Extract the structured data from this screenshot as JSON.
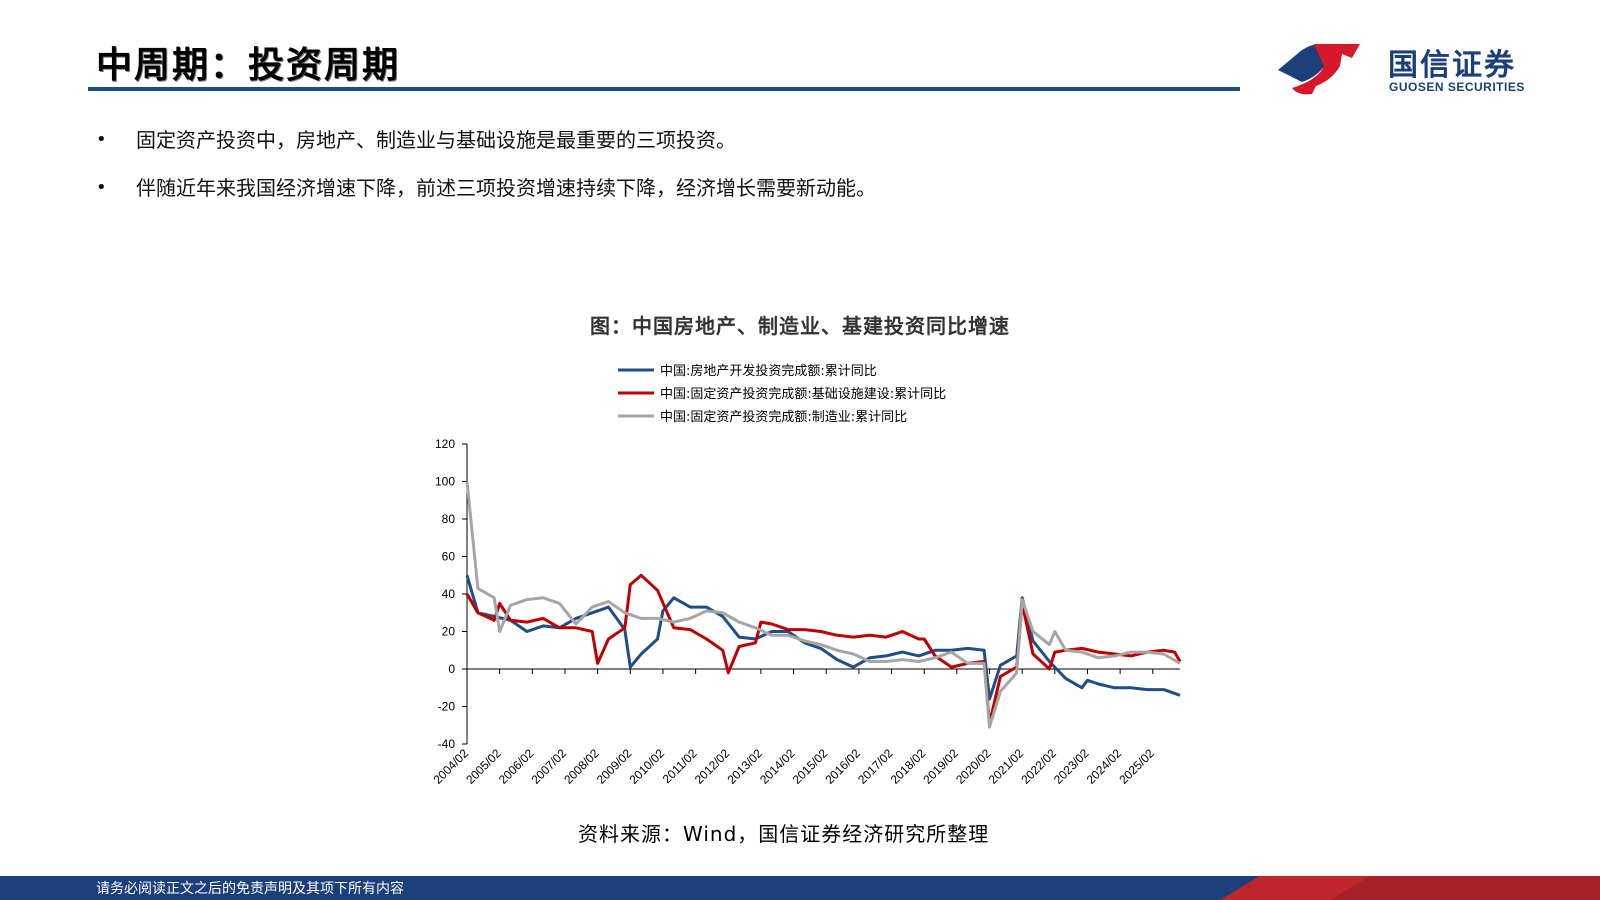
{
  "slide": {
    "title": "中周期：投资周期",
    "bullets": [
      "固定资产投资中，房地产、制造业与基础设施是最重要的三项投资。",
      "伴随近年来我国经济增速下降，前述三项投资增速持续下降，经济增长需要新动能。"
    ],
    "source": "资料来源：Wind，国信证券经济研究所整理",
    "footer": "请务必阅读正文之后的免责声明及其项下所有内容"
  },
  "logo": {
    "name": "国信证券",
    "en": "GUOSEN SECURITIES",
    "colors": {
      "red": "#d7182a",
      "blue": "#1b3f7a"
    }
  },
  "colors": {
    "accent": "#1b4b8a",
    "footer_blue": "#1b3f7a",
    "footer_red": "#c0272d"
  },
  "chart_data": {
    "type": "line",
    "title": "图：中国房地产、制造业、基建投资同比增速",
    "xlabel": "",
    "ylabel": "",
    "ylim": [
      -40,
      120
    ],
    "yticks": [
      -40,
      -20,
      0,
      20,
      40,
      60,
      80,
      100,
      120
    ],
    "grid": false,
    "legend_position": "top",
    "categories": [
      "2004/02",
      "2005/02",
      "2006/02",
      "2007/02",
      "2008/02",
      "2009/02",
      "2010/02",
      "2011/02",
      "2012/02",
      "2013/02",
      "2014/02",
      "2015/02",
      "2016/02",
      "2017/02",
      "2018/02",
      "2019/02",
      "2020/02",
      "2021/02",
      "2022/02",
      "2023/02",
      "2024/02",
      "2025/02"
    ],
    "x_range": [
      "2004/02",
      "2025/12"
    ],
    "series": [
      {
        "name": "中国:房地产开发投资完成额:累计同比",
        "color": "#1f4e86",
        "points": [
          [
            "2004/02",
            50
          ],
          [
            "2004/06",
            30
          ],
          [
            "2004/12",
            28
          ],
          [
            "2005/06",
            26
          ],
          [
            "2005/12",
            20
          ],
          [
            "2006/06",
            23
          ],
          [
            "2006/12",
            22
          ],
          [
            "2007/06",
            27
          ],
          [
            "2007/12",
            30
          ],
          [
            "2008/06",
            33
          ],
          [
            "2008/12",
            21
          ],
          [
            "2009/02",
            1
          ],
          [
            "2009/06",
            8
          ],
          [
            "2009/12",
            16
          ],
          [
            "2010/02",
            31
          ],
          [
            "2010/06",
            38
          ],
          [
            "2010/12",
            33
          ],
          [
            "2011/06",
            33
          ],
          [
            "2011/12",
            28
          ],
          [
            "2012/06",
            17
          ],
          [
            "2012/12",
            16
          ],
          [
            "2013/06",
            20
          ],
          [
            "2013/12",
            20
          ],
          [
            "2014/06",
            14
          ],
          [
            "2014/12",
            11
          ],
          [
            "2015/06",
            5
          ],
          [
            "2015/12",
            1
          ],
          [
            "2016/06",
            6
          ],
          [
            "2016/12",
            7
          ],
          [
            "2017/06",
            9
          ],
          [
            "2017/12",
            7
          ],
          [
            "2018/06",
            10
          ],
          [
            "2018/12",
            10
          ],
          [
            "2019/06",
            11
          ],
          [
            "2019/12",
            10
          ],
          [
            "2020/02",
            -16
          ],
          [
            "2020/06",
            2
          ],
          [
            "2020/12",
            7
          ],
          [
            "2021/02",
            38
          ],
          [
            "2021/06",
            15
          ],
          [
            "2021/12",
            4
          ],
          [
            "2022/06",
            -5
          ],
          [
            "2022/12",
            -10
          ],
          [
            "2023/02",
            -6
          ],
          [
            "2023/06",
            -8
          ],
          [
            "2023/12",
            -10
          ],
          [
            "2024/06",
            -10
          ],
          [
            "2024/12",
            -11
          ],
          [
            "2025/06",
            -11
          ],
          [
            "2025/12",
            -14
          ]
        ]
      },
      {
        "name": "中国:固定资产投资完成额:基础设施建设:累计同比",
        "color": "#c00000",
        "points": [
          [
            "2004/02",
            40
          ],
          [
            "2004/06",
            30
          ],
          [
            "2004/12",
            26
          ],
          [
            "2005/02",
            35
          ],
          [
            "2005/06",
            26
          ],
          [
            "2005/12",
            25
          ],
          [
            "2006/06",
            27
          ],
          [
            "2006/12",
            22
          ],
          [
            "2007/06",
            22
          ],
          [
            "2007/12",
            20
          ],
          [
            "2008/02",
            3
          ],
          [
            "2008/06",
            16
          ],
          [
            "2008/12",
            22
          ],
          [
            "2009/02",
            45
          ],
          [
            "2009/06",
            50
          ],
          [
            "2009/12",
            42
          ],
          [
            "2010/06",
            22
          ],
          [
            "2010/12",
            21
          ],
          [
            "2011/06",
            16
          ],
          [
            "2011/12",
            10
          ],
          [
            "2012/02",
            -2
          ],
          [
            "2012/06",
            12
          ],
          [
            "2012/12",
            14
          ],
          [
            "2013/02",
            25
          ],
          [
            "2013/06",
            24
          ],
          [
            "2013/12",
            21
          ],
          [
            "2014/06",
            21
          ],
          [
            "2014/12",
            20
          ],
          [
            "2015/06",
            18
          ],
          [
            "2015/12",
            17
          ],
          [
            "2016/06",
            18
          ],
          [
            "2016/12",
            17
          ],
          [
            "2017/06",
            20
          ],
          [
            "2017/12",
            16
          ],
          [
            "2018/02",
            16
          ],
          [
            "2018/06",
            7
          ],
          [
            "2018/12",
            1
          ],
          [
            "2019/06",
            3
          ],
          [
            "2019/12",
            4
          ],
          [
            "2020/02",
            -29
          ],
          [
            "2020/06",
            -4
          ],
          [
            "2020/12",
            1
          ],
          [
            "2021/02",
            35
          ],
          [
            "2021/06",
            8
          ],
          [
            "2021/12",
            0
          ],
          [
            "2022/02",
            9
          ],
          [
            "2022/06",
            10
          ],
          [
            "2022/12",
            11
          ],
          [
            "2023/06",
            9
          ],
          [
            "2023/12",
            8
          ],
          [
            "2024/06",
            7
          ],
          [
            "2024/12",
            9
          ],
          [
            "2025/06",
            10
          ],
          [
            "2025/10",
            9
          ],
          [
            "2025/12",
            4
          ]
        ]
      },
      {
        "name": "中国:固定资产投资完成额:制造业:累计同比",
        "color": "#a6a6a6",
        "points": [
          [
            "2004/02",
            100
          ],
          [
            "2004/06",
            43
          ],
          [
            "2004/12",
            38
          ],
          [
            "2005/02",
            20
          ],
          [
            "2005/06",
            34
          ],
          [
            "2005/12",
            37
          ],
          [
            "2006/06",
            38
          ],
          [
            "2006/12",
            35
          ],
          [
            "2007/06",
            24
          ],
          [
            "2007/12",
            33
          ],
          [
            "2008/06",
            36
          ],
          [
            "2008/12",
            30
          ],
          [
            "2009/06",
            27
          ],
          [
            "2009/12",
            27
          ],
          [
            "2010/06",
            25
          ],
          [
            "2010/12",
            27
          ],
          [
            "2011/06",
            31
          ],
          [
            "2011/12",
            30
          ],
          [
            "2012/06",
            25
          ],
          [
            "2012/12",
            22
          ],
          [
            "2013/06",
            18
          ],
          [
            "2013/12",
            18
          ],
          [
            "2014/06",
            15
          ],
          [
            "2014/12",
            13
          ],
          [
            "2015/06",
            10
          ],
          [
            "2015/12",
            8
          ],
          [
            "2016/06",
            4
          ],
          [
            "2016/12",
            4
          ],
          [
            "2017/06",
            5
          ],
          [
            "2017/12",
            4
          ],
          [
            "2018/06",
            6
          ],
          [
            "2018/12",
            9
          ],
          [
            "2019/06",
            3
          ],
          [
            "2019/12",
            3
          ],
          [
            "2020/02",
            -31
          ],
          [
            "2020/06",
            -12
          ],
          [
            "2020/12",
            -2
          ],
          [
            "2021/02",
            37
          ],
          [
            "2021/06",
            20
          ],
          [
            "2021/12",
            13
          ],
          [
            "2022/02",
            20
          ],
          [
            "2022/06",
            10
          ],
          [
            "2022/12",
            9
          ],
          [
            "2023/06",
            6
          ],
          [
            "2023/12",
            7
          ],
          [
            "2024/06",
            9
          ],
          [
            "2024/12",
            9
          ],
          [
            "2025/06",
            8
          ],
          [
            "2025/12",
            3
          ]
        ]
      }
    ]
  }
}
